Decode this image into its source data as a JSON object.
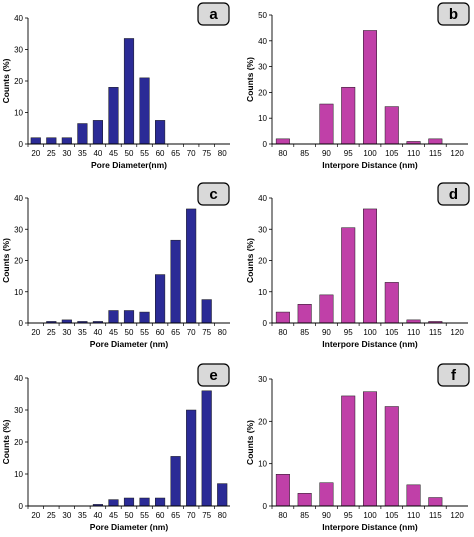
{
  "colors": {
    "pore": "#2b2b96",
    "interpore": "#c040a8",
    "label_box": "#d9d9d9"
  },
  "chart_data": [
    {
      "panel": "a",
      "type": "bar",
      "series_color": "pore",
      "categories": [
        "20",
        "25",
        "30",
        "35",
        "40",
        "45",
        "50",
        "55",
        "60",
        "65",
        "70",
        "75",
        "80"
      ],
      "values": [
        2,
        2,
        2,
        6.5,
        7.5,
        18,
        33.5,
        21,
        7.5,
        0,
        0,
        0,
        0
      ],
      "xlabel": "Pore Diameter(nm)",
      "ylabel": "Counts (%)",
      "ylim": [
        0,
        40
      ],
      "yticks": [
        "0",
        "10",
        "20",
        "30",
        "40"
      ]
    },
    {
      "panel": "b",
      "type": "bar",
      "series_color": "interpore",
      "categories": [
        "80",
        "85",
        "90",
        "95",
        "100",
        "105",
        "110",
        "115",
        "120"
      ],
      "values": [
        2,
        0,
        15.5,
        22,
        44,
        14.5,
        1,
        2,
        0
      ],
      "xlabel": "Interpore Distance (nm)",
      "ylabel": "Counts (%)",
      "ylim": [
        0,
        50
      ],
      "yticks": [
        "0",
        "10",
        "20",
        "30",
        "40",
        "50"
      ]
    },
    {
      "panel": "c",
      "type": "bar",
      "series_color": "pore",
      "categories": [
        "20",
        "25",
        "30",
        "35",
        "40",
        "45",
        "50",
        "55",
        "60",
        "65",
        "70",
        "75",
        "80"
      ],
      "values": [
        0,
        0.5,
        1,
        0.5,
        0.5,
        4,
        4,
        3.5,
        15.5,
        26.5,
        36.5,
        7.5,
        0
      ],
      "xlabel": "Pore Diameter (nm)",
      "ylabel": "Counts (%)",
      "ylim": [
        0,
        40
      ],
      "yticks": [
        "0",
        "10",
        "20",
        "30",
        "40"
      ]
    },
    {
      "panel": "d",
      "type": "bar",
      "series_color": "interpore",
      "categories": [
        "80",
        "85",
        "90",
        "95",
        "100",
        "105",
        "110",
        "115",
        "120"
      ],
      "values": [
        3.5,
        6,
        9,
        30.5,
        36.5,
        13,
        1,
        0.5,
        0
      ],
      "xlabel": "Interpore Distance (nm)",
      "ylabel": "Counts (%)",
      "ylim": [
        0,
        40
      ],
      "yticks": [
        "0",
        "10",
        "20",
        "30",
        "40"
      ]
    },
    {
      "panel": "e",
      "type": "bar",
      "series_color": "pore",
      "categories": [
        "20",
        "25",
        "30",
        "35",
        "40",
        "45",
        "50",
        "55",
        "60",
        "65",
        "70",
        "75",
        "80"
      ],
      "values": [
        0,
        0,
        0,
        0,
        0.5,
        2,
        2.5,
        2.5,
        2.5,
        15.5,
        30,
        36,
        7
      ],
      "xlabel": "Pore Diameter (nm)",
      "ylabel": "Counts (%)",
      "ylim": [
        0,
        40
      ],
      "yticks": [
        "0",
        "10",
        "20",
        "30",
        "40"
      ]
    },
    {
      "panel": "f",
      "type": "bar",
      "series_color": "interpore",
      "categories": [
        "80",
        "85",
        "90",
        "95",
        "100",
        "105",
        "110",
        "115",
        "120"
      ],
      "values": [
        7.5,
        3,
        5.5,
        26,
        27,
        23.5,
        5,
        2,
        0
      ],
      "xlabel": "Interpore Distance (nm)",
      "ylabel": "Counts (%)",
      "ylim": [
        0,
        30
      ],
      "yticks": [
        "0",
        "10",
        "20",
        "30"
      ]
    }
  ]
}
